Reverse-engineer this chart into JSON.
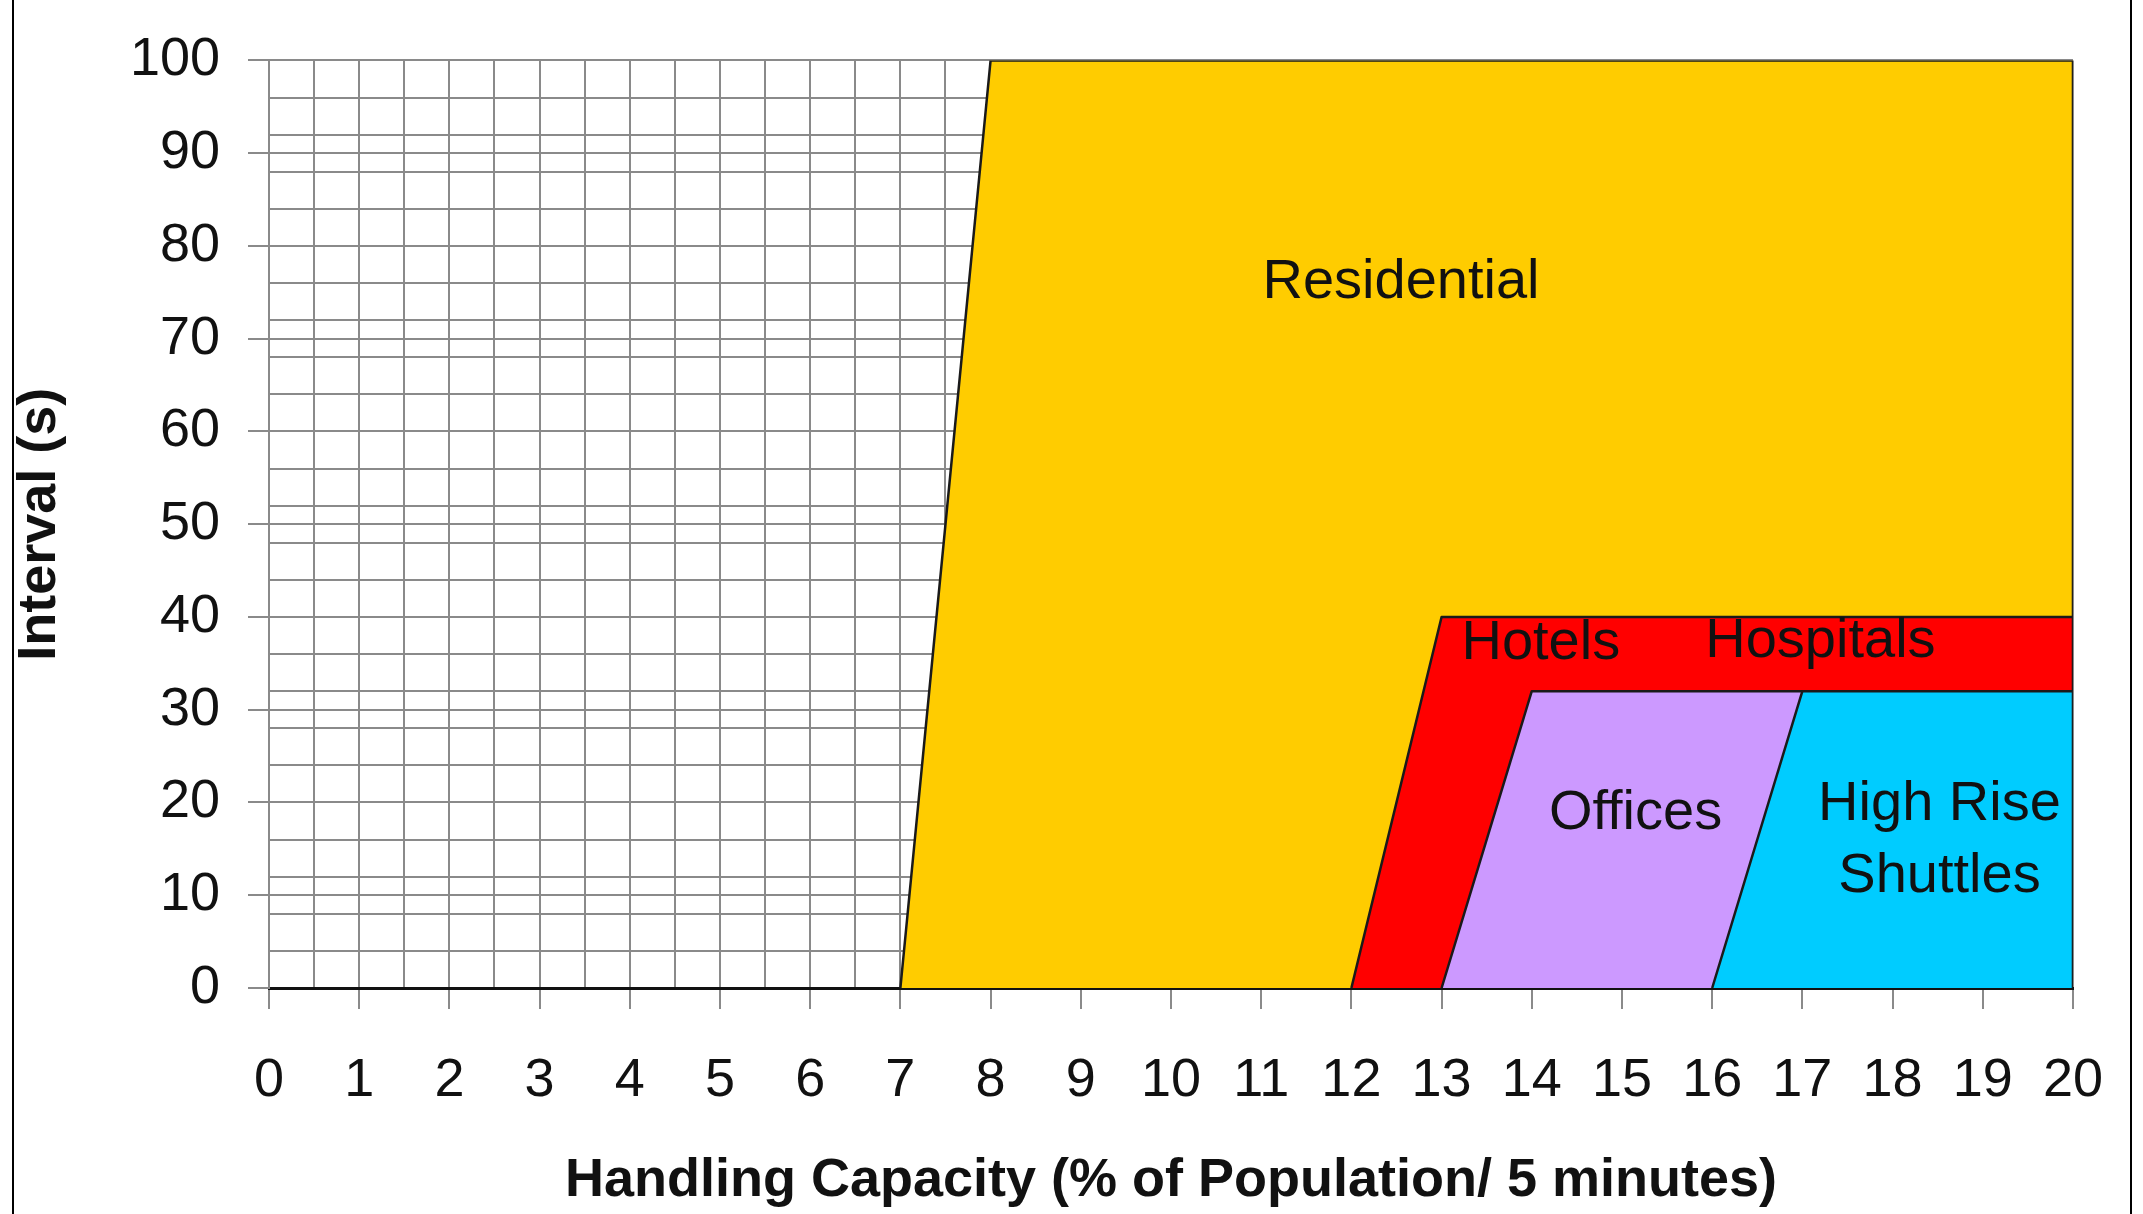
{
  "chart_data": {
    "type": "area",
    "xlabel": "Handling Capacity (% of Population/ 5 minutes)",
    "ylabel": "Interval (s)",
    "xlim": [
      0,
      20
    ],
    "xticks": [
      0,
      {
        "value": 0.5,
        "label": null
      },
      1,
      {
        "value": 1.5,
        "label": null
      },
      2,
      {
        "value": 2.5,
        "label": null
      },
      3,
      {
        "value": 3.5,
        "label": null
      },
      4,
      {
        "value": 4.5,
        "label": null
      },
      5,
      {
        "value": 5.5,
        "label": null
      },
      6,
      {
        "value": 6.5,
        "label": null
      },
      7,
      {
        "value": 7.5,
        "label": null
      },
      8,
      9,
      10,
      11,
      12,
      13,
      14,
      15,
      16,
      17,
      18,
      19,
      20
    ],
    "ylim": [
      0,
      100
    ],
    "yticks": [
      0,
      {
        "value": 4,
        "label": null
      },
      {
        "value": 8,
        "label": null
      },
      10,
      {
        "value": 12,
        "label": null
      },
      {
        "value": 16,
        "label": null
      },
      20,
      {
        "value": 24,
        "label": null
      },
      {
        "value": 28,
        "label": null
      },
      30,
      {
        "value": 32,
        "label": null
      },
      {
        "value": 36,
        "label": null
      },
      40,
      {
        "value": 44,
        "label": null
      },
      {
        "value": 48,
        "label": null
      },
      50,
      {
        "value": 52,
        "label": null
      },
      {
        "value": 56,
        "label": null
      },
      60,
      {
        "value": 64,
        "label": null
      },
      {
        "value": 68,
        "label": null
      },
      70,
      {
        "value": 72,
        "label": null
      },
      {
        "value": 76,
        "label": null
      },
      80,
      {
        "value": 84,
        "label": null
      },
      {
        "value": 88,
        "label": null
      },
      90,
      {
        "value": 92,
        "label": null
      },
      {
        "value": 96,
        "label": null
      },
      100
    ],
    "grid": true,
    "series": [
      {
        "color": "#ffcc00",
        "x": [
          7,
          8,
          20,
          20
        ],
        "values": [
          0,
          100,
          100,
          0
        ]
      },
      {
        "color": "#ff0000",
        "x": [
          12,
          13,
          20,
          20
        ],
        "values": [
          0,
          40,
          40,
          0
        ]
      },
      {
        "color": "#cc99ff",
        "x": [
          13,
          14,
          20,
          20
        ],
        "values": [
          0,
          32,
          32,
          0
        ]
      },
      {
        "color": "#00ccff",
        "x": [
          16,
          17,
          20,
          20
        ],
        "values": [
          0,
          32,
          32,
          0
        ]
      }
    ],
    "annotations": [
      "Residential",
      "Hotels",
      "Hospitals",
      "Offices",
      "High Rise Shuttles"
    ]
  }
}
